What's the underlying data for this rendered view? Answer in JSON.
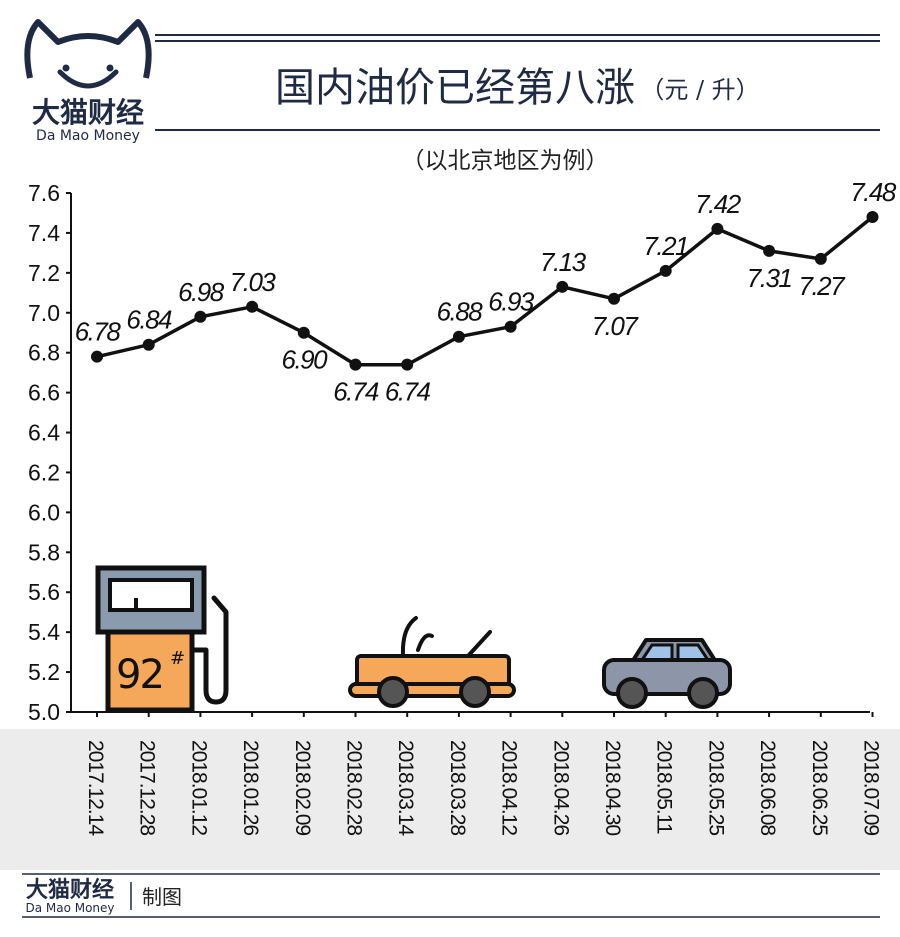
{
  "logo": {
    "name_cn": "大猫财经",
    "name_en": "Da Mao Money"
  },
  "header": {
    "title": "国内油价已经第八涨",
    "unit": "（元 / 升）",
    "subtitle": "（以北京地区为例）"
  },
  "footer": {
    "brand_cn": "大猫财经",
    "brand_en": "Da Mao Money",
    "credit": "制图"
  },
  "illustrations": {
    "pump_label": "92",
    "pump_mark": "#"
  },
  "colors": {
    "navy": "#1f2a44",
    "line": "#111111",
    "xaxis_band": "#ececec",
    "pump_orange": "#f5a85a",
    "pump_gray": "#8a9bb0",
    "car_gray": "#8c96a8",
    "car_window": "#9ec3e6"
  },
  "chart_data": {
    "type": "line",
    "title": "国内油价已经第八涨",
    "xlabel": "",
    "ylabel": "",
    "categories": [
      "2017.12.14",
      "2017.12.28",
      "2018.01.12",
      "2018.01.26",
      "2018.02.09",
      "2018.02.28",
      "2018.03.14",
      "2018.03.28",
      "2018.04.12",
      "2018.04.26",
      "2018.04.30",
      "2018.05.11",
      "2018.05.25",
      "2018.06.08",
      "2018.06.25",
      "2018.07.09"
    ],
    "values": [
      6.78,
      6.84,
      6.98,
      7.03,
      6.9,
      6.74,
      6.74,
      6.88,
      6.93,
      7.13,
      7.07,
      7.21,
      7.42,
      7.31,
      7.27,
      7.48
    ],
    "labels": [
      "6.78",
      "6.84",
      "6.98",
      "7.03",
      "6.90",
      "6.74",
      "6.74",
      "6.88",
      "6.93",
      "7.13",
      "7.07",
      "7.21",
      "7.42",
      "7.31",
      "7.27",
      "7.48"
    ],
    "label_pos": [
      "above",
      "above",
      "above",
      "above",
      "below",
      "below",
      "below",
      "above",
      "above",
      "above",
      "below",
      "above",
      "above",
      "below",
      "below",
      "above"
    ],
    "ylim": [
      5.0,
      7.6
    ],
    "yticks": [
      "5.0",
      "5.2",
      "5.4",
      "5.6",
      "5.8",
      "6.0",
      "6.2",
      "6.4",
      "6.6",
      "6.8",
      "7.0",
      "7.2",
      "7.4",
      "7.6"
    ],
    "grid": false,
    "legend": "none"
  }
}
